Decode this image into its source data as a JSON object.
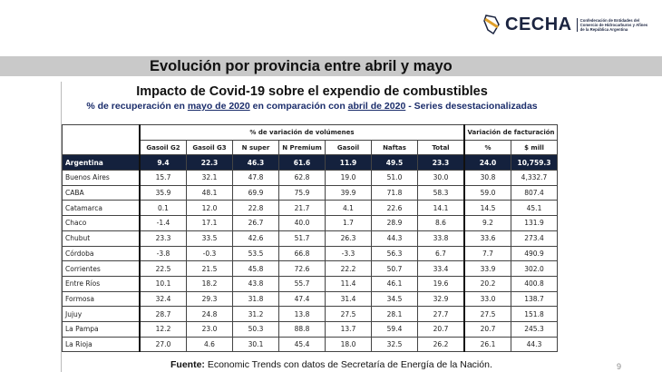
{
  "logo": {
    "name": "CECHA",
    "subtitle": "Confederación de Entidades del Comercio de Hidrocarburos y Afines de la República Argentina"
  },
  "banner": {
    "title": "Evolución por provincia entre abril y mayo"
  },
  "slide": {
    "title": "Impacto de Covid-19 sobre el expendio de combustibles",
    "subtitle_a": "% de recuperación en ",
    "subtitle_b": "mayo de 2020",
    "subtitle_c": " en comparación con ",
    "subtitle_d": "abril de 2020",
    "subtitle_e": " - Series desestacionalizadas",
    "group_volumes": "% de variación de volúmenes",
    "group_billing": "Variación de facturación",
    "columns": [
      "Gasoil G2",
      "Gasoil G3",
      "N super",
      "N Premium",
      "Gasoil",
      "Naftas",
      "Total",
      "%",
      "$ mill"
    ],
    "rows": [
      {
        "name": "Argentina",
        "values": [
          "9.4",
          "22.3",
          "46.3",
          "61.6",
          "11.9",
          "49.5",
          "23.3",
          "24.0",
          "10,759.3"
        ]
      },
      {
        "name": "Buenos Aires",
        "values": [
          "15.7",
          "32.1",
          "47.8",
          "62.8",
          "19.0",
          "51.0",
          "30.0",
          "30.8",
          "4,332.7"
        ]
      },
      {
        "name": "CABA",
        "values": [
          "35.9",
          "48.1",
          "69.9",
          "75.9",
          "39.9",
          "71.8",
          "58.3",
          "59.0",
          "807.4"
        ]
      },
      {
        "name": "Catamarca",
        "values": [
          "0.1",
          "12.0",
          "22.8",
          "21.7",
          "4.1",
          "22.6",
          "14.1",
          "14.5",
          "45.1"
        ]
      },
      {
        "name": "Chaco",
        "values": [
          "-1.4",
          "17.1",
          "26.7",
          "40.0",
          "1.7",
          "28.9",
          "8.6",
          "9.2",
          "131.9"
        ]
      },
      {
        "name": "Chubut",
        "values": [
          "23.3",
          "33.5",
          "42.6",
          "51.7",
          "26.3",
          "44.3",
          "33.8",
          "33.6",
          "273.4"
        ]
      },
      {
        "name": "Córdoba",
        "values": [
          "-3.8",
          "-0.3",
          "53.5",
          "66.8",
          "-3.3",
          "56.3",
          "6.7",
          "7.7",
          "490.9"
        ]
      },
      {
        "name": "Corrientes",
        "values": [
          "22.5",
          "21.5",
          "45.8",
          "72.6",
          "22.2",
          "50.7",
          "33.4",
          "33.9",
          "302.0"
        ]
      },
      {
        "name": "Entre Ríos",
        "values": [
          "10.1",
          "18.2",
          "43.8",
          "55.7",
          "11.4",
          "46.1",
          "19.6",
          "20.2",
          "400.8"
        ]
      },
      {
        "name": "Formosa",
        "values": [
          "32.4",
          "29.3",
          "31.8",
          "47.4",
          "31.4",
          "34.5",
          "32.9",
          "33.0",
          "138.7"
        ]
      },
      {
        "name": "Jujuy",
        "values": [
          "28.7",
          "24.8",
          "31.2",
          "13.8",
          "27.5",
          "28.1",
          "27.7",
          "27.5",
          "151.8"
        ]
      },
      {
        "name": "La Pampa",
        "values": [
          "12.2",
          "23.0",
          "50.3",
          "88.8",
          "13.7",
          "59.4",
          "20.7",
          "20.7",
          "245.3"
        ]
      },
      {
        "name": "La Rioja",
        "values": [
          "27.0",
          "4.6",
          "30.1",
          "45.4",
          "18.0",
          "32.5",
          "26.2",
          "26.1",
          "44.3"
        ]
      }
    ],
    "source_label": "Fuente:",
    "source_text": " Economic Trends con datos de Secretaría de Energía de la Nación."
  },
  "page_number": "9",
  "colors": {
    "highlight_row": "#14213d",
    "banner": "#c9c9c9",
    "subtitle": "#1b2d6b"
  }
}
